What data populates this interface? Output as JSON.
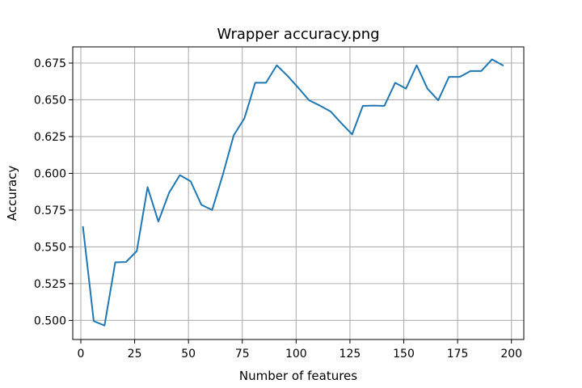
{
  "chart_data": {
    "type": "line",
    "title": "Wrapper accuracy.png",
    "xlabel": "Number of features",
    "ylabel": "Accuracy",
    "xlim": [
      -3.75,
      205.75
    ],
    "ylim": [
      0.487,
      0.686
    ],
    "xticks": [
      0,
      25,
      50,
      75,
      100,
      125,
      150,
      175,
      200
    ],
    "xtick_labels": [
      "0",
      "25",
      "50",
      "75",
      "100",
      "125",
      "150",
      "175",
      "200"
    ],
    "yticks": [
      0.5,
      0.525,
      0.55,
      0.575,
      0.6,
      0.625,
      0.65,
      0.675
    ],
    "ytick_labels": [
      "0.500",
      "0.525",
      "0.550",
      "0.575",
      "0.600",
      "0.625",
      "0.650",
      "0.675"
    ],
    "grid": true,
    "series": [
      {
        "color": "#1f77b4",
        "x": [
          1,
          6,
          11,
          16,
          21,
          26,
          31,
          36,
          41,
          46,
          51,
          56,
          61,
          66,
          71,
          76,
          81,
          86,
          91,
          96,
          101,
          106,
          111,
          116,
          121,
          126,
          131,
          136,
          141,
          146,
          151,
          156,
          161,
          166,
          171,
          176,
          181,
          186,
          191,
          196
        ],
        "values": [
          0.5635,
          0.4995,
          0.4965,
          0.5395,
          0.5397,
          0.5472,
          0.5906,
          0.5672,
          0.5868,
          0.5988,
          0.5946,
          0.5786,
          0.5751,
          0.5993,
          0.6258,
          0.6375,
          0.6616,
          0.6616,
          0.6735,
          0.6663,
          0.6582,
          0.6497,
          0.6461,
          0.6421,
          0.6341,
          0.6265,
          0.6459,
          0.6461,
          0.6459,
          0.6616,
          0.6576,
          0.6735,
          0.6576,
          0.6497,
          0.6656,
          0.6656,
          0.6696,
          0.6696,
          0.6775,
          0.6735
        ]
      }
    ]
  }
}
